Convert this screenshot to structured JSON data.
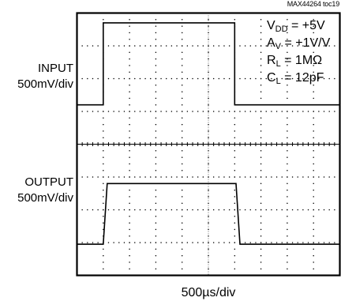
{
  "figure_id": "MAX44264 toc19",
  "conditions": [
    {
      "main": "V",
      "sub": "DD",
      "rest": " = +5V"
    },
    {
      "main": "A",
      "sub": "V",
      "rest": " = +1V/V"
    },
    {
      "main": "R",
      "sub": "L",
      "rest": " = 1MΩ"
    },
    {
      "main": "C",
      "sub": "L",
      "rest": " = 12pF"
    }
  ],
  "chart_data": {
    "type": "line",
    "title": "",
    "xlabel": "500µs/div",
    "x_divisions": 10,
    "y_divisions": 8,
    "xlim": [
      0,
      10
    ],
    "ylim": [
      -4,
      4
    ],
    "series": [
      {
        "name": "INPUT",
        "scale_label": "500mV/div",
        "x": [
          0,
          1.0,
          1.0,
          6.0,
          6.0,
          10
        ],
        "y": [
          1.2,
          1.2,
          3.7,
          3.7,
          1.2,
          1.2
        ]
      },
      {
        "name": "OUTPUT",
        "scale_label": "500mV/div",
        "x": [
          0,
          1.0,
          1.15,
          6.05,
          6.2,
          10
        ],
        "y": [
          -3.05,
          -3.05,
          -1.2,
          -1.2,
          -3.05,
          -3.05
        ]
      }
    ]
  }
}
